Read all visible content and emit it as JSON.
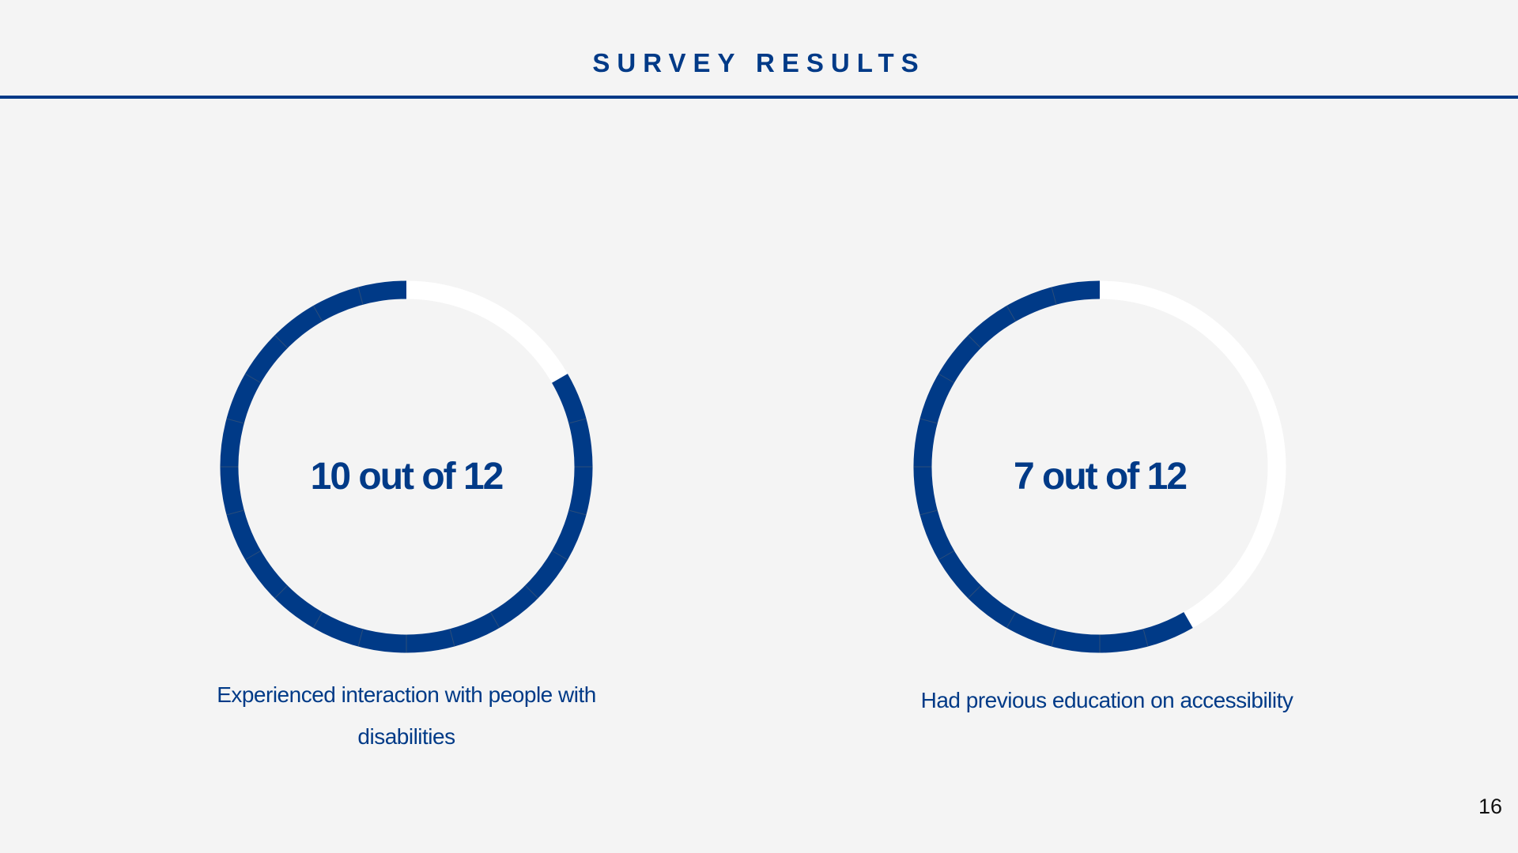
{
  "slide": {
    "title": "SURVEY RESULTS",
    "page_number": "16",
    "colors": {
      "accent": "#003a87",
      "track": "#ffffff",
      "background": "#f4f4f4",
      "separator": "#2c4e7a"
    }
  },
  "results": [
    {
      "value_label": "10 out of 12",
      "count": 10,
      "total": 12,
      "caption": "Experienced interaction with people with disabilities"
    },
    {
      "value_label": "7 out of 12",
      "count": 7,
      "total": 12,
      "caption": "Had previous education on accessibility"
    }
  ]
}
